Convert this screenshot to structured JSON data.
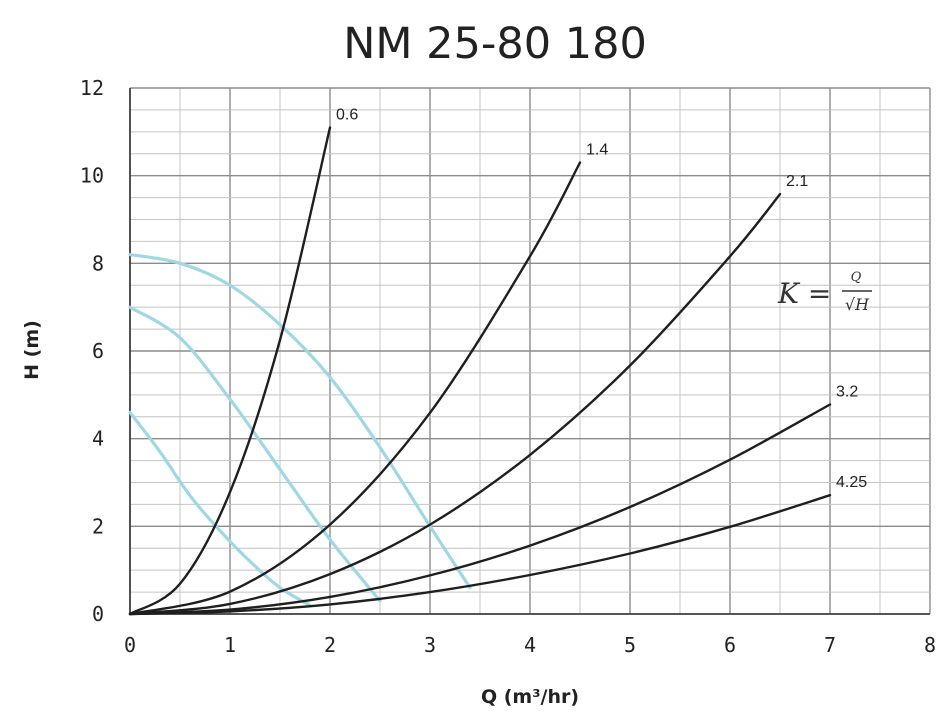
{
  "chart_data": {
    "type": "line",
    "title": "NM 25-80 180",
    "xlabel": "Q (m³/hr)",
    "ylabel": "H (m)",
    "xlim": [
      0,
      8
    ],
    "ylim": [
      0,
      12
    ],
    "x_ticks": [
      "0",
      "1",
      "2",
      "3",
      "4",
      "5",
      "6",
      "7",
      "8"
    ],
    "y_ticks": [
      "0",
      "2",
      "4",
      "6",
      "8",
      "10",
      "12"
    ],
    "grid": true,
    "formula": {
      "lhs": "K =",
      "numerator": "Q",
      "denominator": "√H"
    },
    "series": [
      {
        "name": "0.6",
        "color": "#1f1f1f",
        "x": [
          0,
          0.5,
          1.0,
          1.5,
          2.0
        ],
        "y": [
          0,
          0.69,
          2.78,
          6.25,
          11.1
        ]
      },
      {
        "name": "1.4",
        "color": "#1f1f1f",
        "x": [
          0,
          1.0,
          2.0,
          3.0,
          4.0,
          4.5
        ],
        "y": [
          0,
          0.51,
          2.04,
          4.59,
          8.16,
          10.3
        ]
      },
      {
        "name": "2.1",
        "color": "#1f1f1f",
        "x": [
          0,
          1.0,
          2.0,
          3.0,
          4.0,
          5.0,
          6.0,
          6.5
        ],
        "y": [
          0,
          0.23,
          0.91,
          2.04,
          3.63,
          5.67,
          8.16,
          9.58
        ]
      },
      {
        "name": "3.2",
        "color": "#1f1f1f",
        "x": [
          0,
          1.0,
          2.0,
          3.0,
          4.0,
          5.0,
          6.0,
          7.0
        ],
        "y": [
          0,
          0.1,
          0.39,
          0.88,
          1.56,
          2.44,
          3.52,
          4.78
        ]
      },
      {
        "name": "4.25",
        "color": "#1f1f1f",
        "x": [
          0,
          1.0,
          2.0,
          3.0,
          4.0,
          5.0,
          6.0,
          7.0
        ],
        "y": [
          0,
          0.06,
          0.22,
          0.5,
          0.89,
          1.38,
          1.99,
          2.71
        ]
      },
      {
        "color": "#9fd8e4",
        "x": [
          0,
          0.5,
          1.0,
          1.5,
          2.0,
          2.5,
          3.0,
          3.4
        ],
        "y": [
          8.2,
          8.0,
          7.5,
          6.6,
          5.4,
          3.8,
          2.0,
          0.6
        ]
      },
      {
        "color": "#9fd8e4",
        "x": [
          0,
          0.5,
          1.0,
          1.5,
          2.0,
          2.5
        ],
        "y": [
          7.0,
          6.3,
          4.9,
          3.3,
          1.7,
          0.3
        ]
      },
      {
        "color": "#9fd8e4",
        "x": [
          0,
          0.3,
          0.6,
          0.9,
          1.2,
          1.5,
          1.8
        ],
        "y": [
          4.6,
          3.7,
          2.7,
          1.9,
          1.2,
          0.6,
          0.2
        ]
      }
    ]
  }
}
